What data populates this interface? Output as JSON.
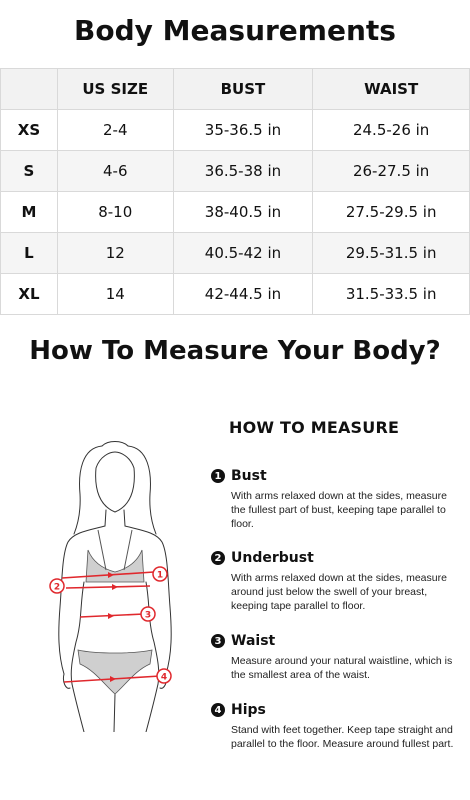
{
  "title": "Body Measurements",
  "table": {
    "headers": [
      "",
      "US SIZE",
      "BUST",
      "WAIST"
    ],
    "rows": [
      {
        "size": "XS",
        "us": "2-4",
        "bust": "35-36.5 in",
        "waist": "24.5-26 in"
      },
      {
        "size": "S",
        "us": "4-6",
        "bust": "36.5-38 in",
        "waist": "26-27.5 in"
      },
      {
        "size": "M",
        "us": "8-10",
        "bust": "38-40.5 in",
        "waist": "27.5-29.5 in"
      },
      {
        "size": "L",
        "us": "12",
        "bust": "40.5-42 in",
        "waist": "29.5-31.5 in"
      },
      {
        "size": "XL",
        "us": "14",
        "bust": "42-44.5 in",
        "waist": "31.5-33.5 in"
      }
    ]
  },
  "subtitle": "How To Measure Your Body?",
  "how_to": {
    "heading": "HOW TO MEASURE",
    "steps": [
      {
        "num": "1",
        "title": "Bust",
        "desc": "With arms relaxed down at the sides, measure the fullest part of bust, keeping tape parallel to floor."
      },
      {
        "num": "2",
        "title": "Underbust",
        "desc": "With arms relaxed down at the sides, measure around just below the swell of your breast, keeping tape parallel to floor."
      },
      {
        "num": "3",
        "title": "Waist",
        "desc": "Measure around your natural waistline, which is the smallest area of the waist."
      },
      {
        "num": "4",
        "title": "Hips",
        "desc": "Stand with feet together. Keep tape straight and parallel to the floor. Measure around fullest part."
      }
    ]
  },
  "figure": {
    "markers": [
      "1",
      "2",
      "3",
      "4"
    ],
    "tape_color": "#e0282d",
    "garment_color": "#cfcfcf"
  }
}
